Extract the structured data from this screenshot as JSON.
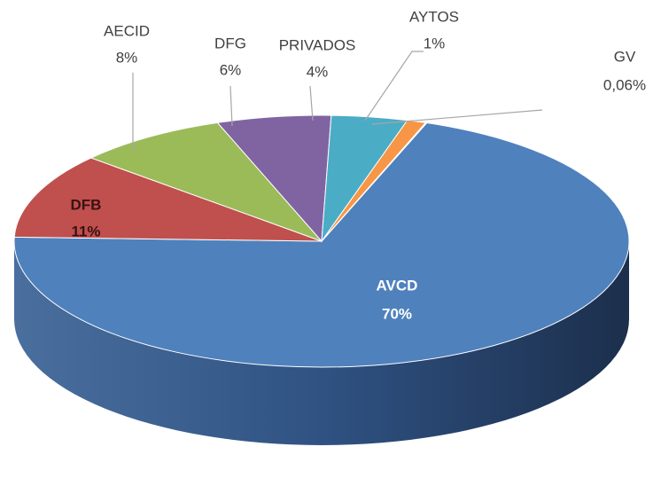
{
  "chart_data": {
    "type": "pie",
    "categories": [
      "AVCD",
      "DFB",
      "AECID",
      "DFG",
      "PRIVADOS",
      "AYTOS",
      "GV"
    ],
    "values": [
      70,
      11,
      8,
      6,
      4,
      1,
      0.06
    ],
    "value_labels": [
      "70%",
      "11%",
      "8%",
      "6%",
      "4%",
      "1%",
      "0,06%"
    ],
    "colors": [
      "#4f81bd",
      "#c0504d",
      "#9bbb59",
      "#8064a2",
      "#4bacc6",
      "#f79646",
      "#2c4d75"
    ]
  }
}
